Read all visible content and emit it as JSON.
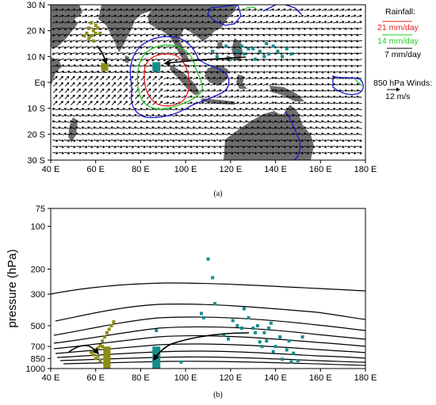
{
  "chart_data": [
    {
      "type": "map",
      "panel_label": "(a)",
      "x_ticks": [
        "40 E",
        "60 E",
        "80 E",
        "100 E",
        "120 E",
        "140 E",
        "160 E",
        "180 E"
      ],
      "y_ticks": [
        "30 N",
        "20 N",
        "10 N",
        "Eq",
        "10 S",
        "20 S",
        "30 S"
      ],
      "xlim": [
        40,
        180
      ],
      "ylim": [
        -30,
        30
      ],
      "legend_title": "Rainfall:",
      "legend": [
        {
          "label": "21 mm/day",
          "color": "#e8201c"
        },
        {
          "label": "14 mm/day",
          "color": "#22cc22"
        },
        {
          "label": "7 mm/day",
          "color": "#1a1acc"
        }
      ],
      "wind_label": "850 hPa Winds:",
      "wind_ref": "12 m/s",
      "land_color": "#6e6e6e",
      "olive_color": "#8c8c14",
      "teal_color": "#148c8c",
      "olive_points": [
        [
          55,
          18
        ],
        [
          56,
          19
        ],
        [
          57,
          21
        ],
        [
          58,
          23
        ],
        [
          59,
          20
        ],
        [
          60,
          22
        ],
        [
          61,
          21
        ],
        [
          62,
          19
        ],
        [
          57,
          17
        ],
        [
          59,
          16
        ],
        [
          58,
          18
        ],
        [
          60,
          19
        ]
      ],
      "teal_points": [
        [
          112,
          12
        ],
        [
          114,
          10
        ],
        [
          118,
          14
        ],
        [
          120,
          9
        ],
        [
          123,
          12
        ],
        [
          126,
          11
        ],
        [
          128,
          13
        ],
        [
          131,
          9
        ],
        [
          133,
          12
        ],
        [
          135,
          10
        ],
        [
          137,
          11
        ],
        [
          139,
          14
        ],
        [
          141,
          12
        ],
        [
          143,
          10
        ],
        [
          145,
          13
        ],
        [
          147,
          11
        ],
        [
          130,
          13
        ],
        [
          136,
          15
        ],
        [
          125,
          14
        ]
      ],
      "olive_box": [
        64,
        6
      ],
      "teal_box": [
        87,
        6
      ]
    },
    {
      "type": "scatter",
      "panel_label": "(b)",
      "ylabel": "pressure (hPa)",
      "x_ticks": [
        "40 E",
        "60 E",
        "80 E",
        "100 E",
        "120 E",
        "140 E",
        "160 E",
        "180 E"
      ],
      "y_ticks": [
        75,
        100,
        200,
        300,
        500,
        700,
        850,
        1000
      ],
      "xlim": [
        40,
        180
      ],
      "ylim": [
        1000,
        75
      ],
      "olive_points": [
        [
          58,
          770
        ],
        [
          59,
          800
        ],
        [
          60,
          740
        ],
        [
          61,
          820
        ],
        [
          62,
          690
        ],
        [
          63,
          640
        ],
        [
          64,
          600
        ],
        [
          65,
          560
        ],
        [
          66,
          530
        ],
        [
          67,
          500
        ],
        [
          68,
          470
        ],
        [
          60,
          850
        ],
        [
          62,
          880
        ],
        [
          64,
          920
        ],
        [
          65,
          960
        ],
        [
          63,
          700
        ],
        [
          61,
          720
        ]
      ],
      "teal_points": [
        [
          87,
          540
        ],
        [
          98,
          900
        ],
        [
          107,
          410
        ],
        [
          108,
          440
        ],
        [
          110,
          170
        ],
        [
          112,
          230
        ],
        [
          113,
          350
        ],
        [
          117,
          580
        ],
        [
          119,
          620
        ],
        [
          121,
          460
        ],
        [
          123,
          500
        ],
        [
          125,
          520
        ],
        [
          126,
          380
        ],
        [
          128,
          440
        ],
        [
          130,
          520
        ],
        [
          131,
          560
        ],
        [
          132,
          500
        ],
        [
          133,
          650
        ],
        [
          134,
          700
        ],
        [
          135,
          560
        ],
        [
          136,
          640
        ],
        [
          137,
          520
        ],
        [
          138,
          480
        ],
        [
          139,
          760
        ],
        [
          140,
          700
        ],
        [
          142,
          600
        ],
        [
          143,
          860
        ],
        [
          145,
          740
        ],
        [
          146,
          640
        ],
        [
          147,
          900
        ],
        [
          148,
          780
        ],
        [
          150,
          880
        ],
        [
          152,
          600
        ]
      ],
      "olive_bar": {
        "x": 65,
        "top": 700,
        "bottom": 1000
      },
      "teal_bar": {
        "x": 87,
        "top": 700,
        "bottom": 1000
      }
    }
  ]
}
